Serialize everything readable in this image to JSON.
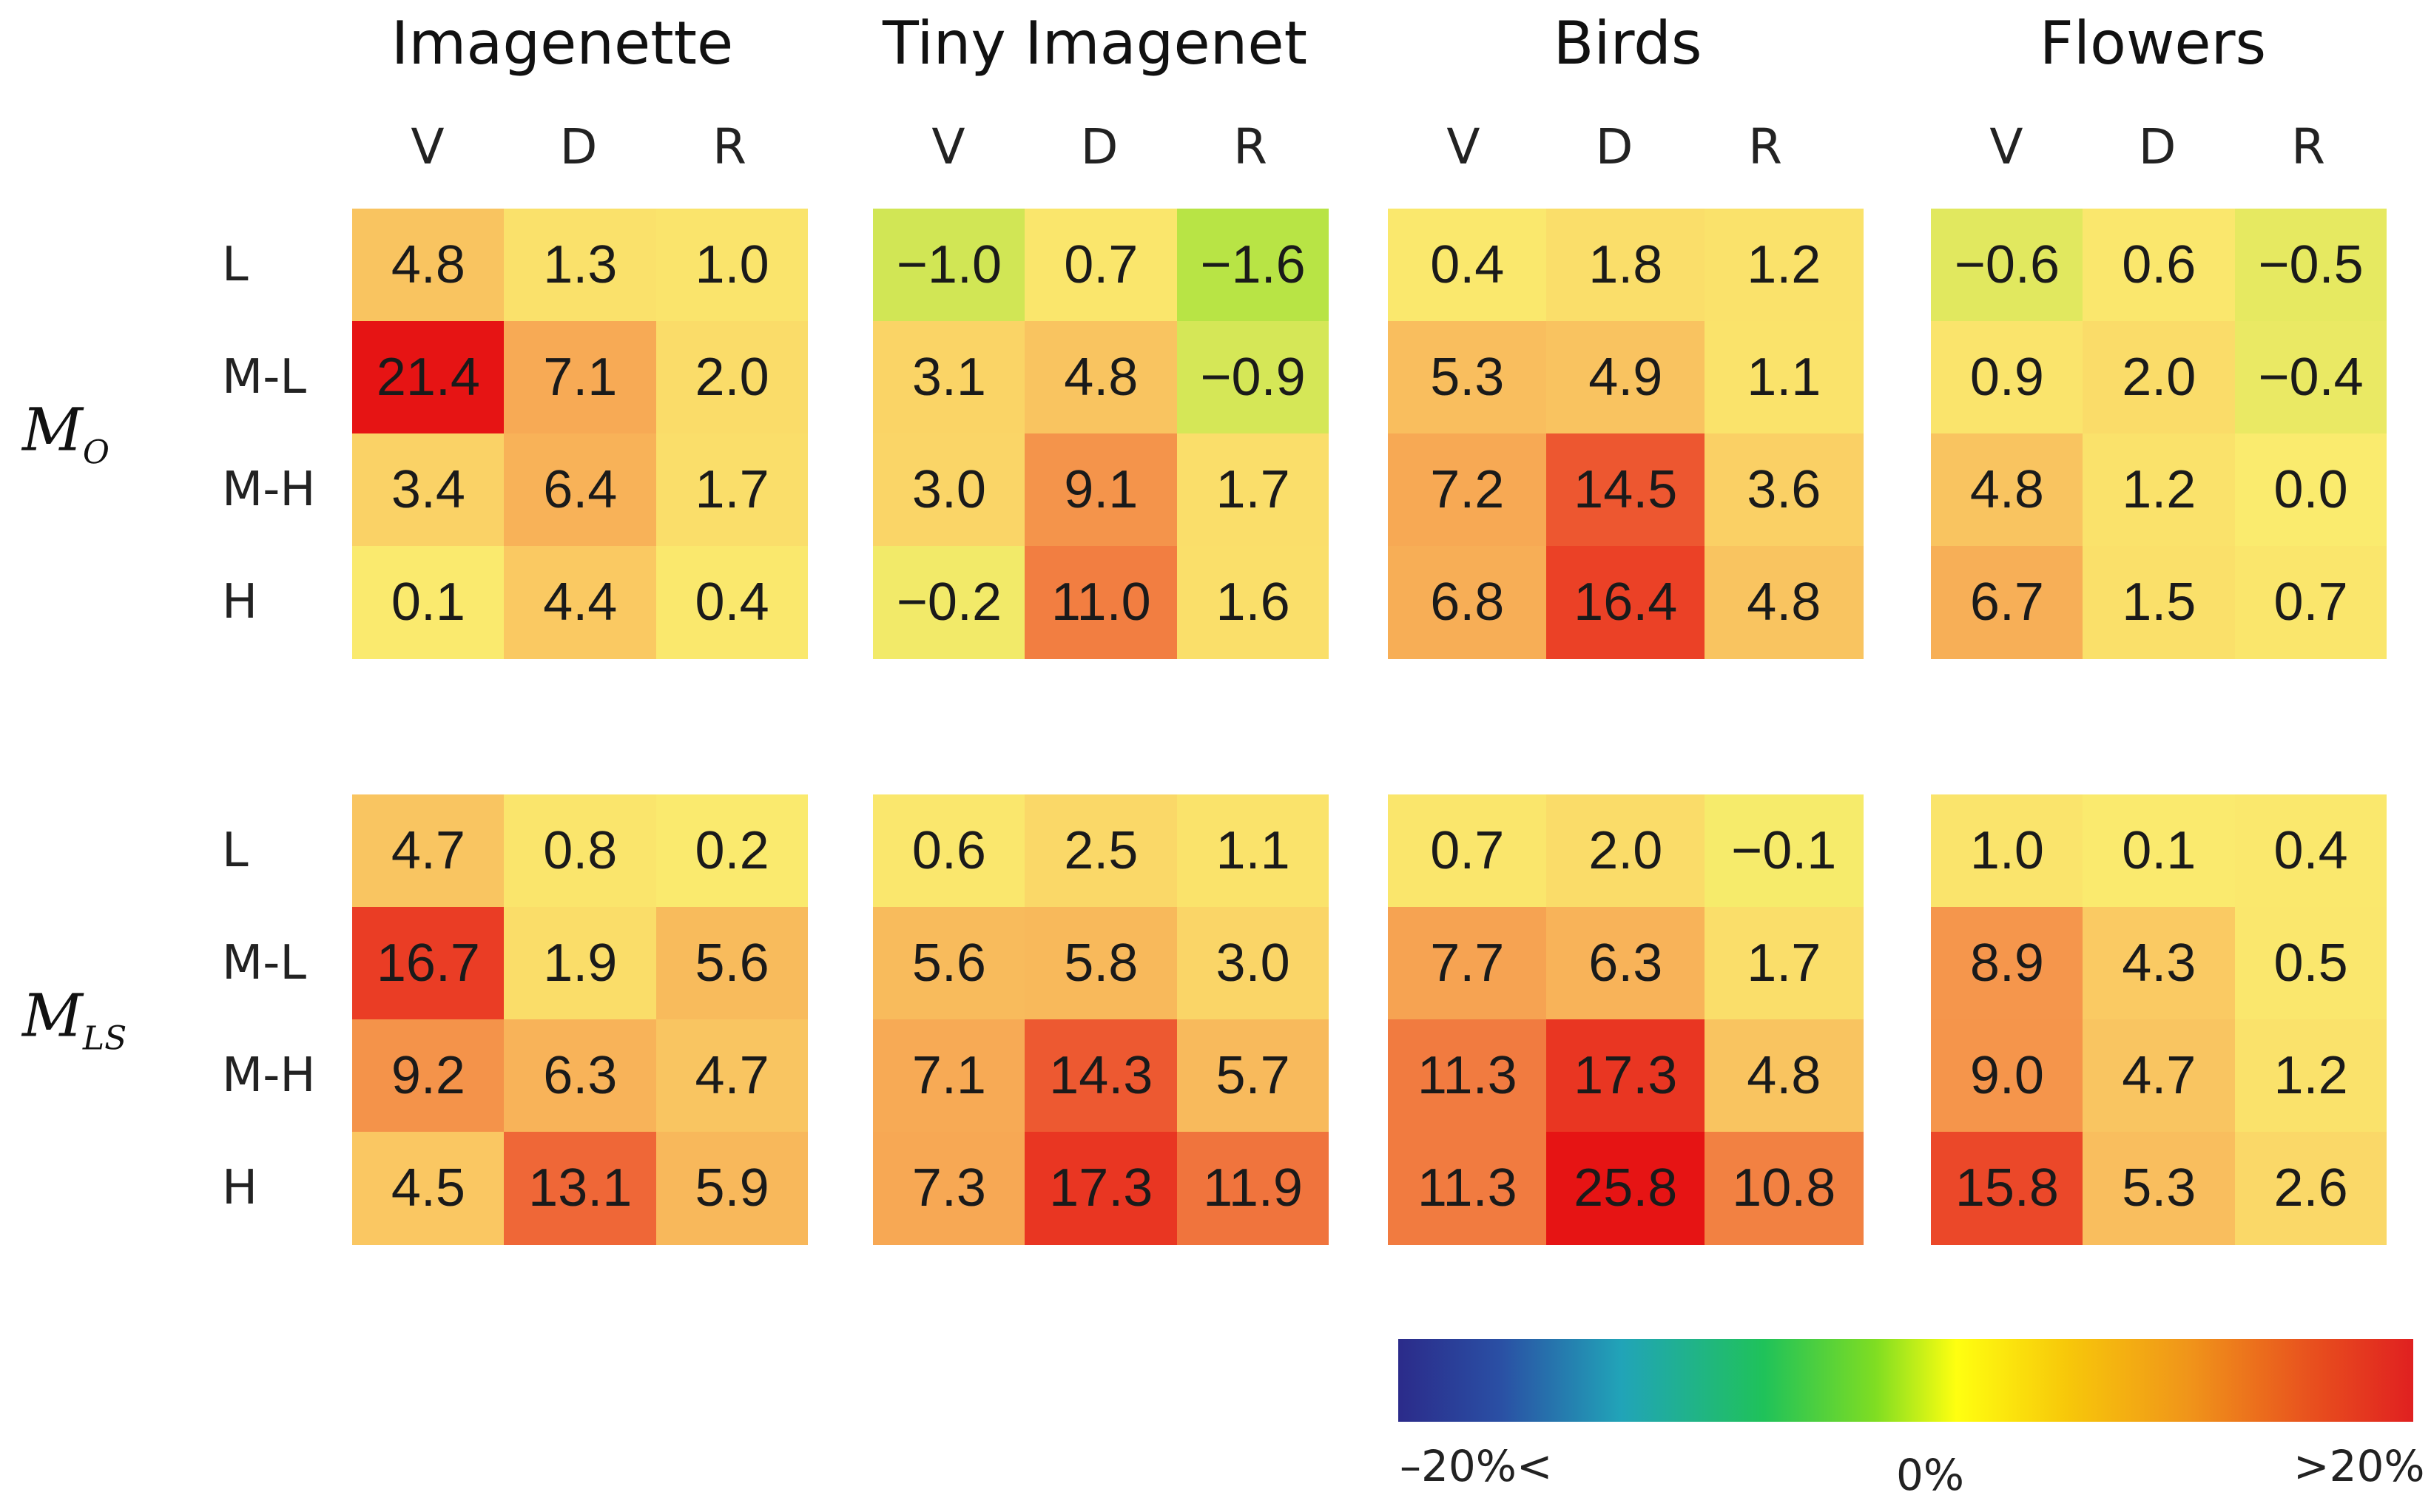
{
  "chart_data": {
    "type": "heatmap",
    "datasets": [
      "Imagenette",
      "Tiny Imagenet",
      "Birds",
      "Flowers"
    ],
    "columns": [
      "V",
      "D",
      "R"
    ],
    "rows": [
      "L",
      "M-L",
      "M-H",
      "H"
    ],
    "models": [
      {
        "name": "M",
        "subscript": "O",
        "values": [
          [
            [
              4.8,
              1.3,
              1.0
            ],
            [
              21.4,
              7.1,
              2.0
            ],
            [
              3.4,
              6.4,
              1.7
            ],
            [
              0.1,
              4.4,
              0.4
            ]
          ],
          [
            [
              -1.0,
              0.7,
              -1.6
            ],
            [
              3.1,
              4.8,
              -0.9
            ],
            [
              3.0,
              9.1,
              1.7
            ],
            [
              -0.2,
              11.0,
              1.6
            ]
          ],
          [
            [
              0.4,
              1.8,
              1.2
            ],
            [
              5.3,
              4.9,
              1.1
            ],
            [
              7.2,
              14.5,
              3.6
            ],
            [
              6.8,
              16.4,
              4.8
            ]
          ],
          [
            [
              -0.6,
              0.6,
              -0.5
            ],
            [
              0.9,
              2.0,
              -0.4
            ],
            [
              4.8,
              1.2,
              0.0
            ],
            [
              6.7,
              1.5,
              0.7
            ]
          ]
        ]
      },
      {
        "name": "M",
        "subscript": "LS",
        "values": [
          [
            [
              4.7,
              0.8,
              0.2
            ],
            [
              16.7,
              1.9,
              5.6
            ],
            [
              9.2,
              6.3,
              4.7
            ],
            [
              4.5,
              13.1,
              5.9
            ]
          ],
          [
            [
              0.6,
              2.5,
              1.1
            ],
            [
              5.6,
              5.8,
              3.0
            ],
            [
              7.1,
              14.3,
              5.7
            ],
            [
              7.3,
              17.3,
              11.9
            ]
          ],
          [
            [
              0.7,
              2.0,
              -0.1
            ],
            [
              7.7,
              6.3,
              1.7
            ],
            [
              11.3,
              17.3,
              4.8
            ],
            [
              11.3,
              25.8,
              10.8
            ]
          ],
          [
            [
              1.0,
              0.1,
              0.4
            ],
            [
              8.9,
              4.3,
              0.5
            ],
            [
              9.0,
              4.7,
              1.2
            ],
            [
              15.8,
              5.3,
              2.6
            ]
          ]
        ]
      }
    ],
    "colorbar": {
      "min_label": "–20%<",
      "mid_label": "0%",
      "max_label": ">20%",
      "range": [
        -20,
        20
      ]
    }
  }
}
